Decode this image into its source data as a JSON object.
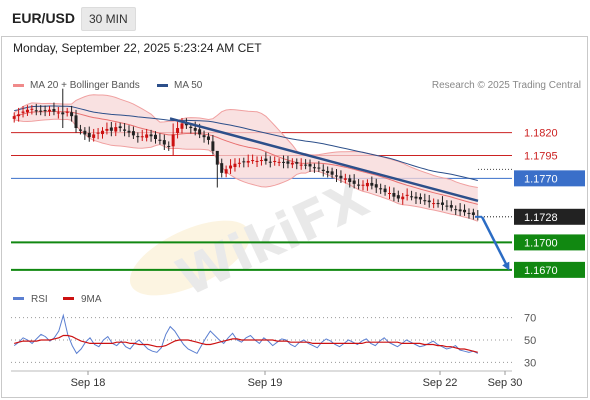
{
  "header": {
    "symbol": "EUR/USD",
    "timeframe": "30 MIN"
  },
  "datetime": "Monday, September 22, 2025 5:23:24 AM CET",
  "legend": [
    {
      "label": "MA 20 + Bollinger Bands",
      "color": "#f08a8a"
    },
    {
      "label": "MA 50",
      "color": "#2c4f8a"
    }
  ],
  "credit": "Research © 2025 Trading Central",
  "rsi_legend": [
    {
      "label": "RSI",
      "color": "#5b7fd1"
    },
    {
      "label": "9MA",
      "color": "#cc1111"
    }
  ],
  "colors": {
    "up": "#cc1111",
    "down": "#222222",
    "resistance": "#cc2222",
    "pivot": "#3a6fc9",
    "support": "#118811",
    "current": "#222222",
    "trend": "#2c4f8a"
  },
  "chart_data": [
    {
      "type": "candlestick",
      "x_ticks": [
        "Sep 18",
        "Sep 19",
        "Sep 22",
        "Sep 30"
      ],
      "ylim": [
        1.1648,
        1.186
      ],
      "price_levels": [
        {
          "value": 1.182,
          "label": "1.1820",
          "kind": "resistance"
        },
        {
          "value": 1.1795,
          "label": "1.1795",
          "kind": "resistance"
        },
        {
          "value": 1.177,
          "label": "1.1770",
          "kind": "pivot"
        },
        {
          "value": 1.1728,
          "label": "1.1728",
          "kind": "current"
        },
        {
          "value": 1.17,
          "label": "1.1700",
          "kind": "support"
        },
        {
          "value": 1.167,
          "label": "1.1670",
          "kind": "support"
        }
      ],
      "close_series": [
        1.1838,
        1.184,
        1.1843,
        1.1845,
        1.1846,
        1.1844,
        1.1843,
        1.1844,
        1.1845,
        1.1843,
        1.1842,
        1.184,
        1.1843,
        1.1838,
        1.1825,
        1.1822,
        1.1818,
        1.1815,
        1.1818,
        1.182,
        1.1822,
        1.1824,
        1.1822,
        1.1826,
        1.1825,
        1.1822,
        1.182,
        1.1817,
        1.1815,
        1.1816,
        1.1818,
        1.1816,
        1.1813,
        1.1811,
        1.1807,
        1.1805,
        1.1818,
        1.1825,
        1.183,
        1.1828,
        1.1825,
        1.1822,
        1.1818,
        1.1815,
        1.1812,
        1.18,
        1.1785,
        1.1776,
        1.178,
        1.1784,
        1.1786,
        1.1787,
        1.1788,
        1.1789,
        1.179,
        1.1789,
        1.179,
        1.1789,
        1.1788,
        1.1789,
        1.1788,
        1.1787,
        1.1786,
        1.1787,
        1.1786,
        1.1785,
        1.1784,
        1.1783,
        1.1781,
        1.1781,
        1.1778,
        1.1776,
        1.1774,
        1.1772,
        1.177,
        1.177,
        1.1766,
        1.1764,
        1.1762,
        1.1763,
        1.1765,
        1.1762,
        1.176,
        1.1758,
        1.1755,
        1.1754,
        1.175,
        1.1748,
        1.175,
        1.1752,
        1.175,
        1.1748,
        1.1747,
        1.1745,
        1.1744,
        1.1743,
        1.1742,
        1.1741,
        1.174,
        1.1738,
        1.1736,
        1.1734,
        1.1733,
        1.1732,
        1.173,
        1.1728
      ],
      "spikes": [
        {
          "index": 11,
          "high": 1.1868,
          "low": 1.1825
        },
        {
          "index": 36,
          "high": 1.183,
          "low": 1.1795
        },
        {
          "index": 46,
          "high": 1.1795,
          "low": 1.176
        }
      ],
      "trendline": {
        "from": 1.183,
        "to": 1.174
      },
      "projection": {
        "from": 1.1728,
        "to": 1.167
      }
    },
    {
      "type": "line",
      "name": "RSI",
      "ylim": [
        25,
        75
      ],
      "y_ticks": [
        70,
        50,
        30
      ],
      "series": [
        {
          "name": "RSI",
          "values": [
            45,
            48,
            52,
            50,
            47,
            51,
            55,
            53,
            49,
            52,
            58,
            72,
            55,
            45,
            38,
            42,
            48,
            52,
            46,
            44,
            50,
            53,
            47,
            45,
            49,
            44,
            42,
            47,
            50,
            46,
            42,
            40,
            39,
            43,
            55,
            62,
            58,
            52,
            46,
            42,
            40,
            38,
            45,
            52,
            58,
            54,
            50,
            47,
            52,
            56,
            50,
            48,
            52,
            54,
            50,
            47,
            52,
            49,
            45,
            48,
            51,
            50,
            46,
            44,
            48,
            50,
            47,
            45,
            43,
            48,
            51,
            49,
            46,
            44,
            47,
            50,
            48,
            46,
            49,
            51,
            47,
            45,
            49,
            52,
            48,
            46,
            44,
            47,
            50,
            48,
            46,
            44,
            45,
            47,
            49,
            46,
            44,
            42,
            43,
            45,
            41,
            40,
            39,
            40,
            38
          ]
        },
        {
          "name": "9MA",
          "values": [
            47,
            48,
            49,
            49,
            49,
            49,
            50,
            50,
            50,
            51,
            52,
            54,
            54,
            53,
            51,
            49,
            48,
            47,
            47,
            47,
            47,
            47,
            47,
            48,
            48,
            48,
            47,
            47,
            46,
            46,
            46,
            45,
            44,
            44,
            45,
            47,
            49,
            50,
            50,
            50,
            49,
            48,
            47,
            46,
            46,
            47,
            48,
            49,
            50,
            51,
            51,
            50,
            50,
            50,
            50,
            50,
            50,
            50,
            50,
            49,
            49,
            49,
            48,
            48,
            48,
            48,
            48,
            47,
            47,
            47,
            47,
            47,
            47,
            47,
            47,
            47,
            47,
            47,
            47,
            48,
            48,
            48,
            48,
            48,
            48,
            48,
            48,
            47,
            47,
            47,
            47,
            47,
            46,
            46,
            46,
            45,
            45,
            44,
            44,
            43,
            42,
            42,
            41,
            40,
            39
          ]
        }
      ]
    }
  ]
}
